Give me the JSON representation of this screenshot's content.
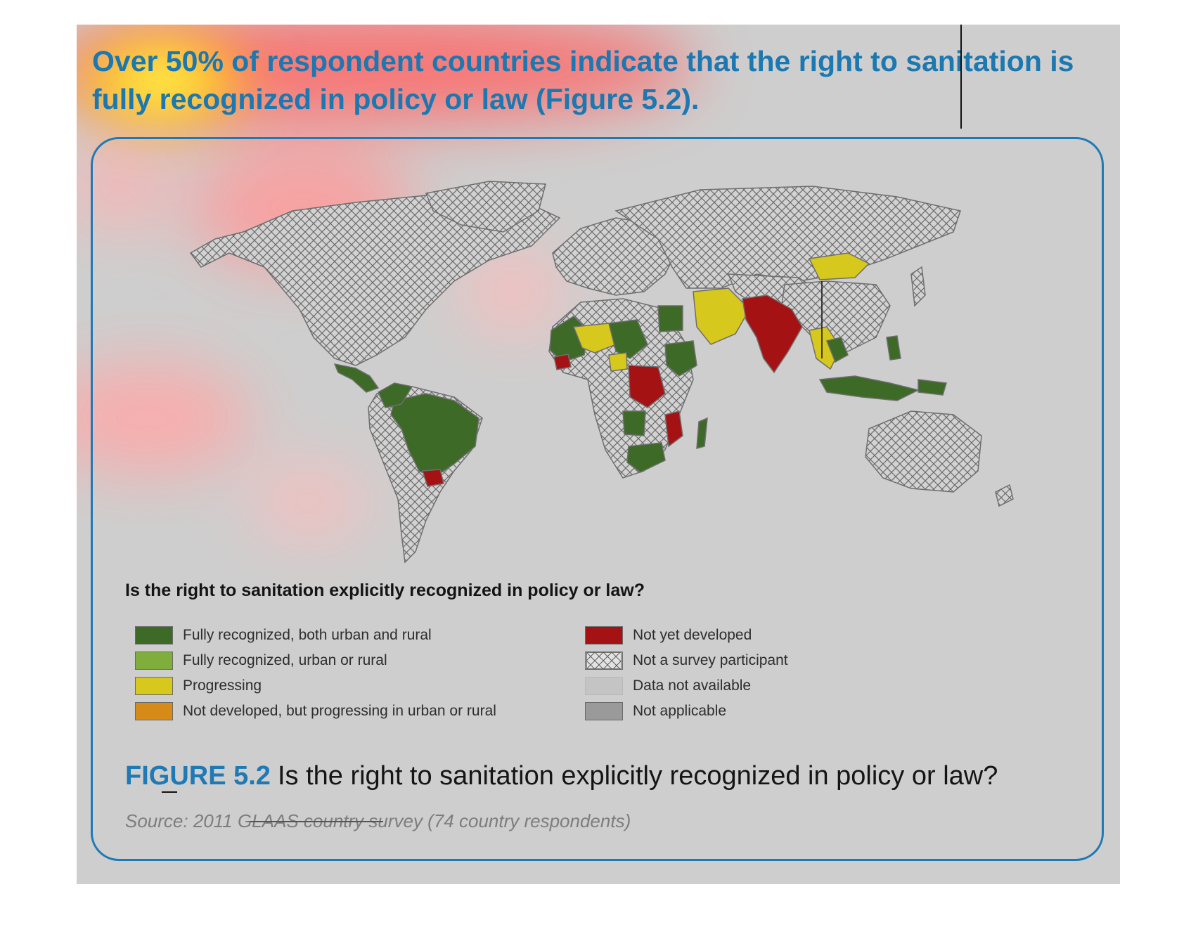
{
  "headline": "Over 50% of respondent countries indicate that the right to sanitation is fully recognized in policy or law (Figure 5.2).",
  "legend": {
    "title": "Is the right to sanitation explicitly recognized in policy or law?",
    "items_left": [
      {
        "label": "Fully recognized, both urban and rural",
        "color": "#3e6a28"
      },
      {
        "label": "Fully recognized, urban or rural",
        "color": "#7fae3c"
      },
      {
        "label": "Progressing",
        "color": "#d6c81c"
      },
      {
        "label": "Not developed, but progressing in urban or rural",
        "color": "#d68a18"
      }
    ],
    "items_right": [
      {
        "label": "Not yet developed",
        "color": "#a51214"
      },
      {
        "label": "Not a survey participant",
        "color": "hatch"
      },
      {
        "label": "Data not available",
        "color": "#c4c4c4"
      },
      {
        "label": "Not applicable",
        "color": "#9a9a9a"
      }
    ]
  },
  "figure": {
    "number": "FIGURE 5.2",
    "caption": "Is the right to sanitation explicitly recognized in policy or law?",
    "source": "Source: 2011 GLAAS country survey (74 country respondents)"
  },
  "colors": {
    "accent": "#1f79b4",
    "fully_both": "#3e6a28",
    "progressing": "#d6c81c",
    "not_yet": "#a51214"
  }
}
